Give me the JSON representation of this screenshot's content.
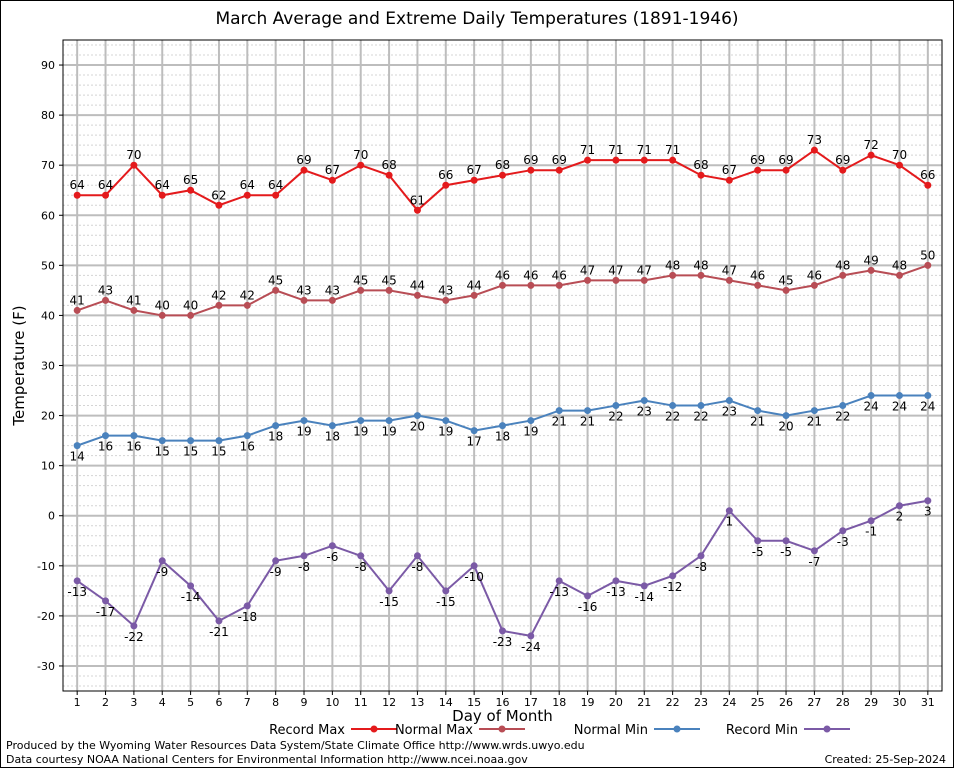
{
  "chart_data": {
    "type": "line",
    "title": "March Average and Extreme Daily Temperatures (1891-1946)",
    "xlabel": "Day of Month",
    "ylabel": "Temperature (F)",
    "x": [
      1,
      2,
      3,
      4,
      5,
      6,
      7,
      8,
      9,
      10,
      11,
      12,
      13,
      14,
      15,
      16,
      17,
      18,
      19,
      20,
      21,
      22,
      23,
      24,
      25,
      26,
      27,
      28,
      29,
      30,
      31
    ],
    "ylim": [
      -35,
      95
    ],
    "yticks": [
      -30,
      -20,
      -10,
      0,
      10,
      20,
      30,
      40,
      50,
      60,
      70,
      80,
      90
    ],
    "grid": true,
    "legend_position": "bottom",
    "series": [
      {
        "name": "Record Max",
        "color": "#e41a1c",
        "values": [
          64,
          64,
          70,
          64,
          65,
          62,
          64,
          64,
          69,
          67,
          70,
          68,
          61,
          66,
          67,
          68,
          69,
          69,
          71,
          71,
          71,
          71,
          68,
          67,
          69,
          69,
          73,
          69,
          72,
          70,
          66
        ]
      },
      {
        "name": "Normal Max",
        "color": "#b84d55",
        "values": [
          41,
          43,
          41,
          40,
          40,
          42,
          42,
          45,
          43,
          43,
          45,
          45,
          44,
          43,
          44,
          46,
          46,
          46,
          47,
          47,
          47,
          48,
          48,
          47,
          46,
          45,
          46,
          48,
          49,
          48,
          50
        ]
      },
      {
        "name": "Normal Min",
        "color": "#4a82bd",
        "values": [
          14,
          16,
          16,
          15,
          15,
          15,
          16,
          18,
          19,
          18,
          19,
          19,
          20,
          19,
          17,
          18,
          19,
          21,
          21,
          22,
          23,
          22,
          22,
          23,
          21,
          20,
          21,
          22,
          24,
          24,
          24
        ]
      },
      {
        "name": "Record Min",
        "color": "#7b5aa6",
        "values": [
          -13,
          -17,
          -22,
          -9,
          -14,
          -21,
          -18,
          -9,
          -8,
          -6,
          -8,
          -15,
          -8,
          -15,
          -10,
          -23,
          -24,
          -13,
          -16,
          -13,
          -14,
          -12,
          -8,
          1,
          -5,
          -5,
          -7,
          -3,
          -1,
          2,
          3
        ]
      }
    ]
  },
  "footer": {
    "produced_by": "Produced by the Wyoming Water Resources Data System/State Climate Office http://www.wrds.uwyo.edu",
    "courtesy": "Data courtesy NOAA National Centers for Environmental Information http://www.ncei.noaa.gov",
    "created": "Created:  25-Sep-2024"
  }
}
